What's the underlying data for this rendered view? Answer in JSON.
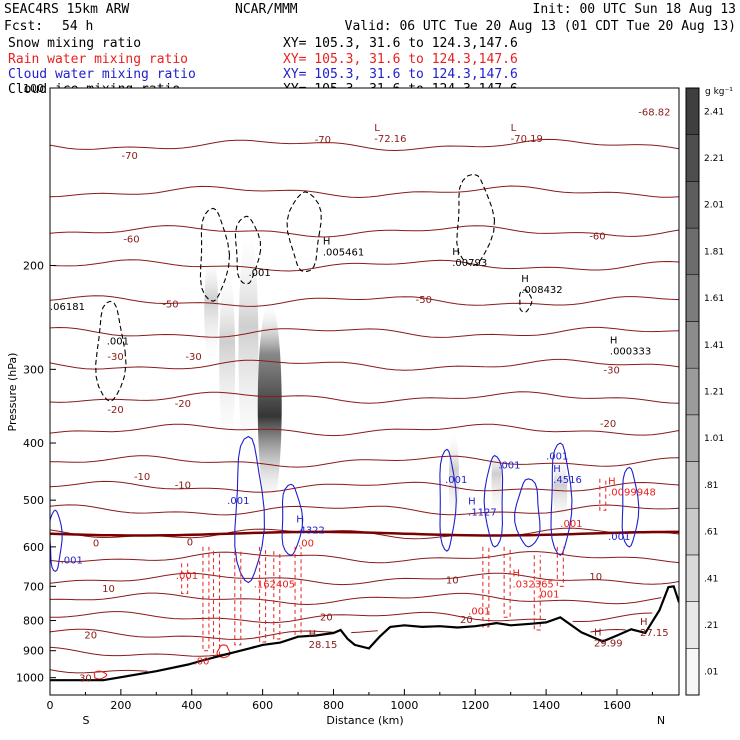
{
  "header": {
    "model": "SEAC4RS 15km ARW",
    "org": "NCAR/MMM",
    "init": "Init: 00 UTC Sun 18 Aug 13",
    "fcst_label": "Fcst:",
    "fcst_value": "54 h",
    "valid": "Valid: 06 UTC Tue 20 Aug 13 (01 CDT Tue 20 Aug 13)",
    "fields": [
      {
        "name": "Snow mixing ratio",
        "xy": "XY= 105.3, 31.6 to 124.3,147.6",
        "color": "#000000"
      },
      {
        "name": "Rain water mixing ratio",
        "xy": "XY= 105.3, 31.6 to 124.3,147.6",
        "color": "#e8211f"
      },
      {
        "name": "Cloud water mixing ratio",
        "xy": "XY= 105.3, 31.6 to 124.3,147.6",
        "color": "#1f1fcc"
      },
      {
        "name": "Cloud ice mixing ratio",
        "xy": "XY= 105.3, 31.6 to 124.3,147.6",
        "color": "#000000"
      }
    ]
  },
  "chart_data": {
    "type": "cross-section",
    "xlabel": "Distance (km)",
    "ylabel": "Pressure (hPa)",
    "xlim": [
      0,
      1775
    ],
    "ylim": [
      1070,
      100
    ],
    "x_ticks": [
      0,
      200,
      400,
      600,
      800,
      1000,
      1200,
      1400,
      1600
    ],
    "y_ticks": [
      100,
      200,
      300,
      400,
      500,
      600,
      700,
      800,
      900,
      1000
    ],
    "y_scale": "log",
    "end_labels": {
      "left": "S",
      "right": "N"
    },
    "colorbar": {
      "unit": "g kg⁻¹",
      "ticks": [
        ".01",
        ".21",
        ".41",
        ".61",
        ".81",
        "1.01",
        "1.21",
        "1.41",
        "1.61",
        "1.81",
        "2.01",
        "2.21",
        "2.41"
      ]
    },
    "temperature_labels": [
      {
        "text": "-70",
        "x": 225,
        "p": 130
      },
      {
        "text": "-70",
        "x": 770,
        "p": 122
      },
      {
        "text": "-60",
        "x": 230,
        "p": 180
      },
      {
        "text": "-60",
        "x": 1545,
        "p": 178
      },
      {
        "text": "-50",
        "x": 340,
        "p": 232
      },
      {
        "text": "-50",
        "x": 1055,
        "p": 228
      },
      {
        "text": "-30",
        "x": 185,
        "p": 285
      },
      {
        "text": "-30",
        "x": 405,
        "p": 285
      },
      {
        "text": "-30",
        "x": 1585,
        "p": 300
      },
      {
        "text": "-20",
        "x": 185,
        "p": 350
      },
      {
        "text": "-20",
        "x": 375,
        "p": 342
      },
      {
        "text": "-20",
        "x": 1575,
        "p": 370
      },
      {
        "text": "-10",
        "x": 260,
        "p": 455
      },
      {
        "text": "-10",
        "x": 375,
        "p": 470
      },
      {
        "text": "0",
        "x": 130,
        "p": 590
      },
      {
        "text": "0",
        "x": 395,
        "p": 588
      },
      {
        "text": "10",
        "x": 165,
        "p": 705
      },
      {
        "text": "10",
        "x": 1135,
        "p": 682
      },
      {
        "text": "10",
        "x": 1540,
        "p": 672
      },
      {
        "text": "20",
        "x": 115,
        "p": 845
      },
      {
        "text": "20",
        "x": 780,
        "p": 787
      },
      {
        "text": "20",
        "x": 1175,
        "p": 796
      },
      {
        "text": "30",
        "x": 100,
        "p": 1000
      }
    ],
    "highs": [
      {
        "text": "-72.16",
        "x": 915,
        "p": 122,
        "mark": "L"
      },
      {
        "text": "-70.19",
        "x": 1300,
        "p": 122,
        "mark": "L"
      },
      {
        "text": "-68.82",
        "x": 1660,
        "p": 110,
        "mark": ""
      },
      {
        "text": ".005461",
        "x": 770,
        "p": 190,
        "mark": "H"
      },
      {
        "text": ".00793",
        "x": 1135,
        "p": 198,
        "mark": "H"
      },
      {
        "text": ".008432",
        "x": 1330,
        "p": 220,
        "mark": "H"
      },
      {
        "text": ".000333",
        "x": 1580,
        "p": 280,
        "mark": "H"
      },
      {
        "text": ".06181",
        "x": 0,
        "p": 235,
        "mark": ""
      },
      {
        "text": ".4322",
        "x": 695,
        "p": 563,
        "mark": "H"
      },
      {
        "text": ".1127",
        "x": 1180,
        "p": 525,
        "mark": "H"
      },
      {
        "text": ".4516",
        "x": 1420,
        "p": 462,
        "mark": "H"
      },
      {
        "text": ".0099948",
        "x": 1575,
        "p": 485,
        "mark": "H"
      },
      {
        "text": ".162405",
        "x": 575,
        "p": 695,
        "mark": ""
      },
      {
        "text": ".032365",
        "x": 1305,
        "p": 695,
        "mark": "H"
      },
      {
        "text": "28.15",
        "x": 730,
        "p": 880,
        "mark": "H"
      },
      {
        "text": "29.99",
        "x": 1535,
        "p": 875,
        "mark": "H"
      },
      {
        "text": "27.15",
        "x": 1665,
        "p": 840,
        "mark": "H"
      }
    ],
    "small_labels": [
      {
        "text": ".001",
        "x": 160,
        "p": 268,
        "color": "#000000"
      },
      {
        "text": ".001",
        "x": 560,
        "p": 205,
        "color": "#000000"
      },
      {
        "text": ".001",
        "x": 30,
        "p": 630,
        "color": "#1f1fcc"
      },
      {
        "text": ".001",
        "x": 500,
        "p": 500,
        "color": "#1f1fcc"
      },
      {
        "text": ".001",
        "x": 1115,
        "p": 460,
        "color": "#1f1fcc"
      },
      {
        "text": ".001",
        "x": 1265,
        "p": 435,
        "color": "#1f1fcc"
      },
      {
        "text": ".001",
        "x": 1400,
        "p": 420,
        "color": "#1f1fcc"
      },
      {
        "text": ".001",
        "x": 1575,
        "p": 575,
        "color": "#1f1fcc"
      },
      {
        "text": ".001",
        "x": 1440,
        "p": 547,
        "color": "#e8211f"
      },
      {
        "text": ".001",
        "x": 355,
        "p": 670,
        "color": "#e8211f"
      },
      {
        "text": ".001",
        "x": 1180,
        "p": 770,
        "color": "#e8211f"
      },
      {
        "text": ".001",
        "x": 1375,
        "p": 720,
        "color": "#e8211f"
      },
      {
        "text": ".00",
        "x": 405,
        "p": 935,
        "color": "#e8211f"
      },
      {
        "text": ".00",
        "x": 700,
        "p": 590,
        "color": "#e8211f"
      }
    ],
    "terrain_pressure": [
      [
        0,
        1010
      ],
      [
        150,
        1010
      ],
      [
        300,
        975
      ],
      [
        390,
        950
      ],
      [
        430,
        935
      ],
      [
        500,
        912
      ],
      [
        560,
        893
      ],
      [
        600,
        880
      ],
      [
        650,
        872
      ],
      [
        700,
        852
      ],
      [
        750,
        848
      ],
      [
        800,
        840
      ],
      [
        820,
        830
      ],
      [
        840,
        860
      ],
      [
        860,
        880
      ],
      [
        900,
        892
      ],
      [
        930,
        852
      ],
      [
        960,
        820
      ],
      [
        1000,
        815
      ],
      [
        1050,
        820
      ],
      [
        1100,
        818
      ],
      [
        1150,
        822
      ],
      [
        1200,
        818
      ],
      [
        1260,
        808
      ],
      [
        1300,
        815
      ],
      [
        1360,
        810
      ],
      [
        1400,
        806
      ],
      [
        1440,
        790
      ],
      [
        1500,
        838
      ],
      [
        1560,
        868
      ],
      [
        1600,
        848
      ],
      [
        1640,
        828
      ],
      [
        1680,
        840
      ],
      [
        1720,
        768
      ],
      [
        1745,
        702
      ],
      [
        1760,
        700
      ],
      [
        1775,
        745
      ]
    ],
    "freezing_level_pressure": 570,
    "snow_band": {
      "x": 620,
      "p_top": 230,
      "p_bottom": 520,
      "max": 2.41
    }
  }
}
